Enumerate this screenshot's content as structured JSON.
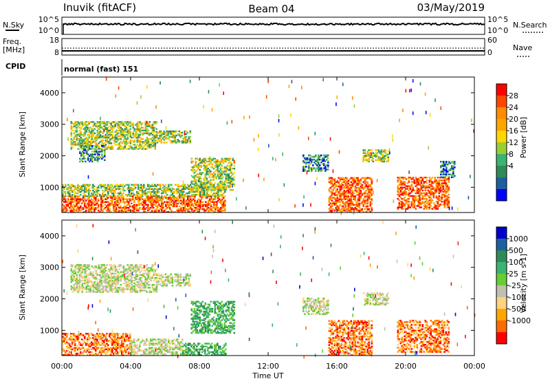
{
  "header": {
    "station": "Inuvik (fitACF)",
    "beam": "Beam 04",
    "date": "03/May/2019"
  },
  "panels": {
    "nsky_label": "N.Sky",
    "nsearch_label": "N.Search",
    "nsky_ticks": [
      "10^5",
      "10^0"
    ],
    "nsearch_ticks": [
      "10^5",
      "10^0"
    ],
    "freq_label": "Freq.",
    "freq_unit": "[MHz]",
    "freq_ticks": [
      "18",
      "8"
    ],
    "nave_label": "Nave",
    "nave_ticks": [
      "60",
      "0"
    ],
    "cpid_label": "CPID",
    "cpid_text": "normal (fast) 151"
  },
  "chart_data": [
    {
      "type": "heatmap",
      "name": "power",
      "ylabel": "Slant Range [km]",
      "ylim": [
        200,
        4500
      ],
      "yticks": [
        "4000",
        "3000",
        "2000",
        "1000"
      ],
      "colorbar": {
        "label": "Power [dB]",
        "ticks": [
          "28",
          "24",
          "20",
          "16",
          "12",
          "8",
          "4"
        ],
        "colors": [
          "#ff0000",
          "#ff4500",
          "#ff8c00",
          "#ffa500",
          "#ffd700",
          "#9acd32",
          "#3cb371",
          "#2e8b57",
          "#1e5fa0",
          "#0000ff"
        ]
      },
      "echo_regions": [
        {
          "t0": 0.0,
          "t1": 9.5,
          "r0": 200,
          "r1": 700,
          "level": "high"
        },
        {
          "t0": 0.0,
          "t1": 9.5,
          "r0": 700,
          "r1": 1100,
          "level": "mid"
        },
        {
          "t0": 0.5,
          "t1": 5.5,
          "r0": 2200,
          "r1": 3100,
          "level": "mid"
        },
        {
          "t0": 1.0,
          "t1": 2.5,
          "r0": 1800,
          "r1": 2300,
          "level": "low"
        },
        {
          "t0": 5.5,
          "t1": 7.5,
          "r0": 2400,
          "r1": 2800,
          "level": "mid"
        },
        {
          "t0": 7.5,
          "t1": 10.0,
          "r0": 900,
          "r1": 1900,
          "level": "mid"
        },
        {
          "t0": 14.0,
          "t1": 15.5,
          "r0": 1500,
          "r1": 2000,
          "level": "low"
        },
        {
          "t0": 15.5,
          "t1": 18.0,
          "r0": 200,
          "r1": 1300,
          "level": "high"
        },
        {
          "t0": 17.5,
          "t1": 19.0,
          "r0": 1800,
          "r1": 2200,
          "level": "mid"
        },
        {
          "t0": 19.5,
          "t1": 22.5,
          "r0": 300,
          "r1": 1300,
          "level": "high"
        },
        {
          "t0": 22.0,
          "t1": 22.8,
          "r0": 1300,
          "r1": 1800,
          "level": "low"
        }
      ]
    },
    {
      "type": "heatmap",
      "name": "velocity",
      "ylabel": "Slant Range [km]",
      "ylim": [
        200,
        4500
      ],
      "yticks": [
        "4000",
        "3000",
        "2000",
        "1000"
      ],
      "xlabel": "Time UT",
      "xticks": [
        "00:00",
        "04:00",
        "08:00",
        "12:00",
        "16:00",
        "20:00",
        "00:00"
      ],
      "xlim": [
        0,
        24
      ],
      "colorbar": {
        "label": "Velocity [m s-1]",
        "ticks": [
          "1000",
          "500",
          "100",
          "25",
          "-25",
          "-100",
          "-500",
          "-1000"
        ],
        "colors": [
          "#0000cd",
          "#1e5fa0",
          "#2e8b57",
          "#3cb371",
          "#66cd33",
          "#c0c0b0",
          "#ffd27f",
          "#ffa500",
          "#ff6a00",
          "#ff0000"
        ]
      },
      "echo_regions": [
        {
          "t0": 0.0,
          "t1": 4.0,
          "r0": 200,
          "r1": 900,
          "level": "neg"
        },
        {
          "t0": 4.0,
          "t1": 7.0,
          "r0": 200,
          "r1": 700,
          "level": "zero"
        },
        {
          "t0": 7.0,
          "t1": 9.5,
          "r0": 200,
          "r1": 600,
          "level": "pos"
        },
        {
          "t0": 0.5,
          "t1": 5.5,
          "r0": 2200,
          "r1": 3100,
          "level": "zero"
        },
        {
          "t0": 5.5,
          "t1": 7.5,
          "r0": 2400,
          "r1": 2800,
          "level": "zero"
        },
        {
          "t0": 7.5,
          "t1": 10.0,
          "r0": 900,
          "r1": 1900,
          "level": "pos"
        },
        {
          "t0": 14.0,
          "t1": 15.5,
          "r0": 1500,
          "r1": 2000,
          "level": "zero"
        },
        {
          "t0": 15.5,
          "t1": 18.0,
          "r0": 200,
          "r1": 1300,
          "level": "neg"
        },
        {
          "t0": 17.5,
          "t1": 19.0,
          "r0": 1800,
          "r1": 2200,
          "level": "zero"
        },
        {
          "t0": 19.5,
          "t1": 22.5,
          "r0": 300,
          "r1": 1300,
          "level": "neg"
        }
      ]
    }
  ]
}
